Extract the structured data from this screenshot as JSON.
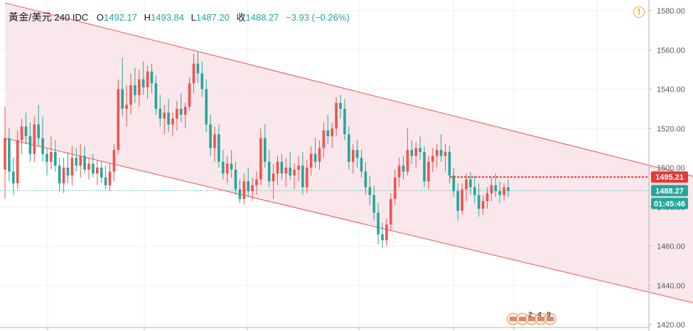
{
  "header": {
    "symbol": "黃金/美元",
    "interval": "240",
    "source": "IDC",
    "open_label": "O",
    "open": "1492.17",
    "high_label": "H",
    "high": "1493.84",
    "low_label": "L",
    "low": "1487.20",
    "close_label": "收",
    "close": "1488.27",
    "change": "−3.93 (−0.26%)"
  },
  "icons": {
    "alert": "exclamation-circle-icon"
  },
  "colors": {
    "up": "#ef5350",
    "down": "#26a69a",
    "channel": "#ef5350",
    "channel_fill": "#f8e3e8",
    "price_line": "#26a69a",
    "alert_line": "#e53935"
  },
  "chart_data": {
    "type": "candlestick",
    "y_axis": {
      "min": 1420,
      "max": 1580,
      "ticks": [
        1420,
        1440,
        1460,
        1480,
        1500,
        1520,
        1540,
        1560,
        1580
      ]
    },
    "grid": true,
    "last_price": 1488.27,
    "last_price_label": "1488.27",
    "countdown_label": "01:45:46",
    "alert_price": 1495.21,
    "alert_price_label": "1495.21",
    "channel": {
      "upper": [
        {
          "bar": 0,
          "price": 1584
        },
        {
          "bar": 180,
          "price": 1487
        }
      ],
      "lower": [
        {
          "bar": 0,
          "price": 1515
        },
        {
          "bar": 180,
          "price": 1423
        }
      ]
    },
    "event_badges": [
      "2",
      "4",
      "9"
    ],
    "candles": [
      [
        1499,
        1531,
        1484,
        1515
      ],
      [
        1515,
        1520,
        1493,
        1498
      ],
      [
        1498,
        1505,
        1486,
        1492
      ],
      [
        1492,
        1519,
        1489,
        1514
      ],
      [
        1514,
        1525,
        1507,
        1521
      ],
      [
        1521,
        1528,
        1512,
        1516
      ],
      [
        1516,
        1523,
        1503,
        1507
      ],
      [
        1507,
        1526,
        1503,
        1522
      ],
      [
        1522,
        1532,
        1511,
        1515
      ],
      [
        1515,
        1526,
        1503,
        1507
      ],
      [
        1507,
        1510,
        1496,
        1503
      ],
      [
        1503,
        1516,
        1499,
        1508
      ],
      [
        1508,
        1514,
        1498,
        1501
      ],
      [
        1501,
        1505,
        1488,
        1492
      ],
      [
        1492,
        1505,
        1487,
        1500
      ],
      [
        1500,
        1508,
        1492,
        1496
      ],
      [
        1496,
        1511,
        1491,
        1505
      ],
      [
        1505,
        1510,
        1498,
        1501
      ],
      [
        1501,
        1512,
        1495,
        1506
      ],
      [
        1506,
        1511,
        1497,
        1499
      ],
      [
        1499,
        1505,
        1494,
        1502
      ],
      [
        1502,
        1507,
        1495,
        1497
      ],
      [
        1497,
        1504,
        1491,
        1500
      ],
      [
        1500,
        1503,
        1492,
        1495
      ],
      [
        1495,
        1501,
        1489,
        1491
      ],
      [
        1491,
        1502,
        1488,
        1498
      ],
      [
        1498,
        1512,
        1493,
        1509
      ],
      [
        1509,
        1545,
        1507,
        1540
      ],
      [
        1540,
        1556,
        1526,
        1530
      ],
      [
        1530,
        1542,
        1521,
        1532
      ],
      [
        1532,
        1548,
        1527,
        1542
      ],
      [
        1542,
        1551,
        1533,
        1537
      ],
      [
        1537,
        1550,
        1531,
        1545
      ],
      [
        1545,
        1554,
        1537,
        1541
      ],
      [
        1541,
        1552,
        1535,
        1549
      ],
      [
        1549,
        1553,
        1538,
        1543
      ],
      [
        1543,
        1547,
        1527,
        1530
      ],
      [
        1530,
        1537,
        1521,
        1525
      ],
      [
        1525,
        1532,
        1517,
        1528
      ],
      [
        1528,
        1535,
        1518,
        1522
      ],
      [
        1522,
        1528,
        1516,
        1525
      ],
      [
        1525,
        1534,
        1519,
        1530
      ],
      [
        1530,
        1538,
        1523,
        1527
      ],
      [
        1527,
        1533,
        1520,
        1531
      ],
      [
        1531,
        1546,
        1529,
        1543
      ],
      [
        1543,
        1558,
        1538,
        1553
      ],
      [
        1553,
        1559,
        1543,
        1548
      ],
      [
        1548,
        1554,
        1536,
        1540
      ],
      [
        1540,
        1545,
        1518,
        1522
      ],
      [
        1522,
        1527,
        1506,
        1510
      ],
      [
        1510,
        1521,
        1503,
        1517
      ],
      [
        1517,
        1522,
        1500,
        1503
      ],
      [
        1503,
        1509,
        1494,
        1497
      ],
      [
        1497,
        1506,
        1492,
        1502
      ],
      [
        1502,
        1509,
        1495,
        1499
      ],
      [
        1499,
        1503,
        1486,
        1489
      ],
      [
        1489,
        1494,
        1482,
        1484
      ],
      [
        1484,
        1497,
        1481,
        1493
      ],
      [
        1493,
        1500,
        1485,
        1488
      ],
      [
        1488,
        1495,
        1483,
        1491
      ],
      [
        1491,
        1498,
        1486,
        1494
      ],
      [
        1494,
        1520,
        1491,
        1515
      ],
      [
        1515,
        1522,
        1500,
        1503
      ],
      [
        1503,
        1509,
        1490,
        1493
      ],
      [
        1493,
        1502,
        1484,
        1497
      ],
      [
        1497,
        1506,
        1491,
        1503
      ],
      [
        1503,
        1507,
        1494,
        1497
      ],
      [
        1497,
        1505,
        1490,
        1500
      ],
      [
        1500,
        1508,
        1494,
        1496
      ],
      [
        1496,
        1502,
        1489,
        1499
      ],
      [
        1499,
        1506,
        1493,
        1501
      ],
      [
        1501,
        1508,
        1486,
        1490
      ],
      [
        1490,
        1504,
        1487,
        1500
      ],
      [
        1500,
        1511,
        1496,
        1507
      ],
      [
        1507,
        1515,
        1500,
        1503
      ],
      [
        1503,
        1514,
        1499,
        1510
      ],
      [
        1510,
        1523,
        1505,
        1519
      ],
      [
        1519,
        1527,
        1512,
        1516
      ],
      [
        1516,
        1523,
        1510,
        1520
      ],
      [
        1520,
        1536,
        1516,
        1533
      ],
      [
        1533,
        1537,
        1525,
        1530
      ],
      [
        1530,
        1535,
        1514,
        1517
      ],
      [
        1517,
        1521,
        1499,
        1503
      ],
      [
        1503,
        1512,
        1497,
        1509
      ],
      [
        1509,
        1514,
        1500,
        1505
      ],
      [
        1505,
        1509,
        1495,
        1498
      ],
      [
        1498,
        1503,
        1486,
        1490
      ],
      [
        1490,
        1496,
        1481,
        1486
      ],
      [
        1486,
        1491,
        1473,
        1477
      ],
      [
        1477,
        1482,
        1461,
        1466
      ],
      [
        1466,
        1472,
        1459,
        1463
      ],
      [
        1463,
        1474,
        1460,
        1471
      ],
      [
        1471,
        1487,
        1468,
        1484
      ],
      [
        1484,
        1499,
        1481,
        1495
      ],
      [
        1495,
        1505,
        1490,
        1501
      ],
      [
        1501,
        1506,
        1494,
        1498
      ],
      [
        1498,
        1520,
        1496,
        1509
      ],
      [
        1509,
        1514,
        1502,
        1506
      ],
      [
        1506,
        1513,
        1500,
        1510
      ],
      [
        1510,
        1516,
        1504,
        1508
      ],
      [
        1508,
        1511,
        1490,
        1493
      ],
      [
        1493,
        1506,
        1489,
        1503
      ],
      [
        1503,
        1510,
        1498,
        1506
      ],
      [
        1506,
        1512,
        1500,
        1509
      ],
      [
        1509,
        1517,
        1503,
        1506
      ],
      [
        1506,
        1512,
        1498,
        1508
      ],
      [
        1508,
        1511,
        1492,
        1496
      ],
      [
        1496,
        1500,
        1485,
        1488
      ],
      [
        1488,
        1492,
        1473,
        1478
      ],
      [
        1478,
        1492,
        1476,
        1489
      ],
      [
        1489,
        1497,
        1483,
        1494
      ],
      [
        1494,
        1498,
        1486,
        1490
      ],
      [
        1490,
        1496,
        1482,
        1486
      ],
      [
        1486,
        1492,
        1475,
        1479
      ],
      [
        1479,
        1486,
        1476,
        1483
      ],
      [
        1483,
        1490,
        1479,
        1487
      ],
      [
        1487,
        1495,
        1483,
        1491
      ],
      [
        1491,
        1497,
        1485,
        1488
      ],
      [
        1488,
        1493,
        1482,
        1486
      ],
      [
        1486,
        1492,
        1483,
        1490
      ],
      [
        1490,
        1494,
        1485,
        1488
      ]
    ]
  }
}
